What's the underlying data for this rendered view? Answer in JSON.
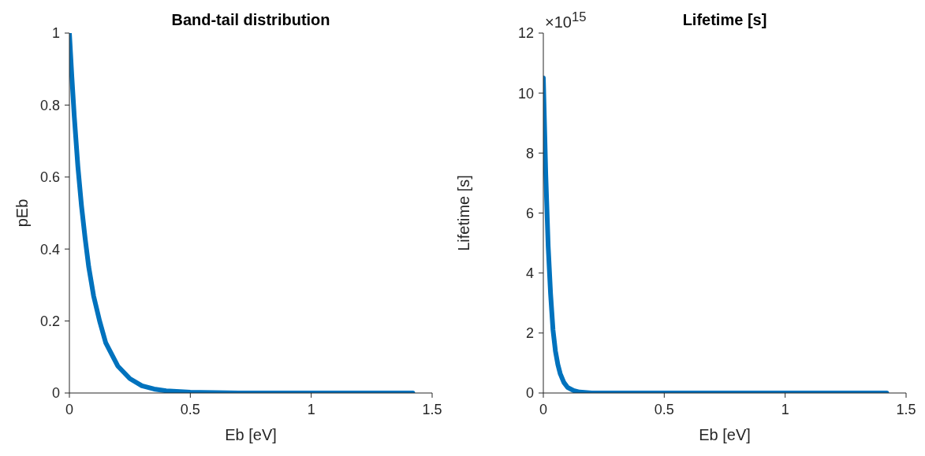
{
  "chart_data": [
    {
      "type": "line",
      "title": "Band-tail distribution",
      "xlabel": "Eb [eV]",
      "ylabel": "pEb",
      "x": [
        0,
        0.01,
        0.02,
        0.035,
        0.05,
        0.065,
        0.08,
        0.1,
        0.125,
        0.15,
        0.2,
        0.25,
        0.3,
        0.35,
        0.4,
        0.5,
        0.6,
        0.7,
        1.0,
        1.42
      ],
      "values": [
        1,
        0.88,
        0.77,
        0.63,
        0.52,
        0.43,
        0.35,
        0.27,
        0.2,
        0.14,
        0.075,
        0.04,
        0.02,
        0.011,
        0.006,
        0.002,
        0.001,
        0,
        0,
        0
      ],
      "color": "#0072bd",
      "xlim": [
        0,
        1.5
      ],
      "xticks": [
        0,
        0.5,
        1,
        1.5
      ],
      "ylim": [
        0,
        1
      ],
      "yticks": [
        0,
        0.2,
        0.4,
        0.6,
        0.8,
        1
      ]
    },
    {
      "type": "line",
      "title": "Lifetime [s]",
      "xlabel": "Eb [eV]",
      "ylabel": "Lifetime [s]",
      "x": [
        0,
        0.01,
        0.02,
        0.03,
        0.04,
        0.05,
        0.06,
        0.07,
        0.085,
        0.1,
        0.125,
        0.15,
        0.2,
        0.5,
        1.0,
        1.42
      ],
      "values": [
        10.5,
        7.3,
        4.9,
        3.3,
        2.1,
        1.4,
        0.95,
        0.64,
        0.35,
        0.19,
        0.08,
        0.03,
        0,
        0,
        0,
        0
      ],
      "color": "#0072bd",
      "xlim": [
        0,
        1.5
      ],
      "xticks": [
        0,
        0.5,
        1,
        1.5
      ],
      "ylim": [
        0,
        12
      ],
      "yticks": [
        0,
        2,
        4,
        6,
        8,
        10,
        12
      ],
      "annotations": [
        "×10$^{15}$"
      ]
    }
  ]
}
